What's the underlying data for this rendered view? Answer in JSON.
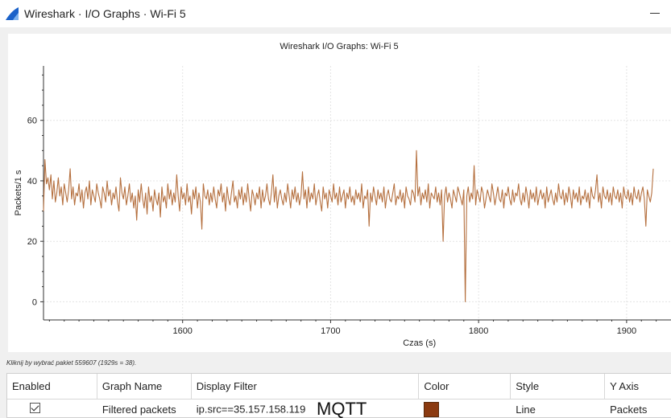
{
  "window": {
    "title": "Wireshark · I/O Graphs · Wi-Fi 5"
  },
  "status": "Kliknij by wybrać pakiet 559607 (1929s = 38).",
  "colors": {
    "series": "#b5703f",
    "swatch": "#8b3a10",
    "grid": "#e4e4e4",
    "axis": "#333333"
  },
  "chart_data": {
    "type": "line",
    "title": "Wireshark I/O Graphs: Wi-Fi 5",
    "xlabel": "Czas (s)",
    "ylabel": "Packets/1 s",
    "xlim": [
      1506,
      1930
    ],
    "ylim": [
      -6,
      78
    ],
    "xticks": [
      1600,
      1700,
      1800,
      1900
    ],
    "yticks": [
      0,
      20,
      40,
      60
    ],
    "grid": true,
    "series": [
      {
        "name": "Filtered packets",
        "x_start": 1506,
        "x_step": 1,
        "values": [
          30,
          47,
          39,
          41,
          37,
          42,
          34,
          40,
          33,
          36,
          41,
          35,
          38,
          32,
          39,
          36,
          33,
          37,
          44,
          34,
          38,
          32,
          36,
          35,
          39,
          33,
          37,
          31,
          36,
          38,
          34,
          40,
          32,
          37,
          35,
          33,
          39,
          36,
          34,
          31,
          38,
          36,
          33,
          40,
          35,
          37,
          32,
          36,
          34,
          38,
          33,
          30,
          41,
          36,
          34,
          38,
          32,
          35,
          39,
          33,
          36,
          31,
          35,
          27,
          37,
          33,
          39,
          34,
          31,
          36,
          29,
          38,
          33,
          35,
          30,
          37,
          34,
          32,
          36,
          28,
          38,
          33,
          35,
          31,
          39,
          34,
          37,
          32,
          36,
          33,
          42,
          35,
          30,
          38,
          34,
          36,
          32,
          39,
          33,
          35,
          29,
          37,
          34,
          38,
          31,
          36,
          33,
          24,
          39,
          35,
          34,
          37,
          32,
          36,
          33,
          38,
          34,
          31,
          37,
          35,
          39,
          33,
          36,
          30,
          38,
          34,
          32,
          36,
          40,
          33,
          35,
          31,
          37,
          34,
          38,
          32,
          36,
          33,
          39,
          34,
          30,
          37,
          35,
          32,
          36,
          34,
          38,
          31,
          37,
          33,
          35,
          39,
          34,
          32,
          36,
          42,
          33,
          38,
          31,
          35,
          37,
          34,
          32,
          36,
          33,
          39,
          35,
          31,
          37,
          34,
          38,
          33,
          36,
          32,
          35,
          43,
          34,
          37,
          31,
          38,
          33,
          36,
          34,
          39,
          32,
          35,
          37,
          33,
          30,
          38,
          34,
          36,
          31,
          37,
          35,
          33,
          39,
          34,
          36,
          32,
          38,
          33,
          35,
          37,
          31,
          36,
          34,
          38,
          33,
          35,
          32,
          37,
          34,
          36,
          33,
          39,
          31,
          35,
          34,
          37,
          25,
          36,
          33,
          38,
          35,
          32,
          37,
          34,
          36,
          33,
          38,
          31,
          35,
          37,
          34,
          33,
          36,
          39,
          32,
          35,
          34,
          37,
          33,
          36,
          31,
          38,
          35,
          34,
          32,
          37,
          36,
          33,
          50,
          35,
          38,
          32,
          36,
          34,
          37,
          33,
          39,
          31,
          36,
          35,
          34,
          38,
          33,
          36,
          32,
          37,
          20,
          35,
          38,
          33,
          36,
          34,
          31,
          37,
          35,
          33,
          38,
          36,
          34,
          32,
          37,
          0,
          35,
          38,
          33,
          36,
          34,
          45,
          32,
          37,
          35,
          33,
          38,
          36,
          31,
          34,
          37,
          35,
          33,
          39,
          36,
          32,
          35,
          38,
          34,
          33,
          37,
          31,
          36,
          35,
          38,
          34,
          32,
          37,
          33,
          36,
          35,
          39,
          34,
          32,
          36,
          33,
          38,
          35,
          31,
          37,
          34,
          36,
          33,
          38,
          32,
          35,
          37,
          34,
          36,
          31,
          38,
          33,
          35,
          37,
          34,
          32,
          36,
          33,
          39,
          35,
          34,
          37,
          32,
          36,
          33,
          38,
          35,
          31,
          37,
          34,
          36,
          33,
          38,
          32,
          35,
          34,
          37,
          33,
          36,
          31,
          38,
          35,
          34,
          37,
          42,
          33,
          36,
          31,
          38,
          35,
          34,
          37,
          33,
          36,
          32,
          38,
          35,
          34,
          37,
          33,
          36,
          31,
          38,
          35,
          34,
          37,
          33,
          36,
          32,
          38,
          35,
          34,
          37,
          33,
          36,
          38,
          34,
          25,
          37,
          35,
          33,
          36,
          44
        ]
      }
    ]
  },
  "table": {
    "headers": [
      "Enabled",
      "Graph Name",
      "Display Filter",
      "Color",
      "Style",
      "Y Axis"
    ],
    "row": {
      "enabled": true,
      "name": "Filtered packets",
      "filter": "ip.src==35.157.158.119",
      "note": "MQTT",
      "style": "Line",
      "y_axis": "Packets"
    }
  }
}
